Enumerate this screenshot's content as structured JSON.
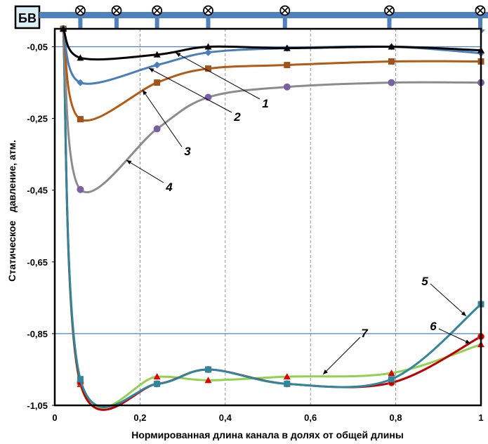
{
  "header": {
    "source_label": "БВ",
    "pipe_color": "#4f81bd",
    "valve_icon": "circle-x-valve-icon",
    "valve_positions_x": [
      0.06,
      0.145,
      0.24,
      0.36,
      0.54,
      0.785,
      1.0
    ]
  },
  "chart_data": {
    "type": "line",
    "title": "",
    "xlabel": "Нормированная длина канала в  долях от общей длины",
    "ylabel": "Статическое   давление, атм.",
    "xlim": [
      0,
      1
    ],
    "ylim": [
      -1.05,
      0.0
    ],
    "xticks": [
      0,
      0.2,
      0.4,
      0.6,
      0.8,
      1
    ],
    "xtick_labels": [
      "0",
      "0,2",
      "0,4",
      "0,6",
      "0,8",
      "1"
    ],
    "yticks": [
      -0.05,
      -0.25,
      -0.45,
      -0.65,
      -0.85,
      -1.05
    ],
    "ytick_labels": [
      "-0,05",
      "-0,25",
      "-0,45",
      "-0,65",
      "-0,85",
      "-1,05"
    ],
    "grid": "vertical dashed",
    "reference_lines_y": [
      -0.05,
      -0.85
    ],
    "x": [
      0.02,
      0.06,
      0.24,
      0.36,
      0.545,
      0.79,
      1.0
    ],
    "series": [
      {
        "name": "1",
        "color": "#000000",
        "marker": "triangle",
        "marker_color": "#000000",
        "values": [
          0.0,
          -0.081,
          -0.072,
          -0.05,
          -0.054,
          -0.05,
          -0.06
        ]
      },
      {
        "name": "2",
        "color": "#4a7ebb",
        "marker": "diamond",
        "marker_color": "#4a7ebb",
        "values": [
          0.0,
          -0.15,
          -0.101,
          -0.066,
          -0.054,
          -0.05,
          -0.068
        ]
      },
      {
        "name": "3",
        "color": "#b35a14",
        "marker": "square",
        "marker_color": "#a0521a",
        "values": [
          0.0,
          -0.252,
          -0.15,
          -0.111,
          -0.101,
          -0.091,
          -0.091
        ]
      },
      {
        "name": "4",
        "color": "#8c8c8c",
        "marker": "circle",
        "marker_color": "#7a60a0",
        "values": [
          0.0,
          -0.448,
          -0.279,
          -0.191,
          -0.162,
          -0.15,
          -0.15
        ]
      },
      {
        "name": "5",
        "color": "#31859c",
        "marker": "square",
        "marker_color": "#31859c",
        "values": [
          0.0,
          -0.977,
          -0.99,
          -0.95,
          -0.99,
          -0.977,
          -0.768
        ]
      },
      {
        "name": "6",
        "color": "#c00000",
        "marker": "circle",
        "marker_color": "#c00000",
        "values": [
          0.0,
          -0.987,
          -0.99,
          -0.95,
          -0.99,
          -0.987,
          -0.858
        ]
      },
      {
        "name": "7",
        "color": "#92d050",
        "marker": "triangle",
        "marker_color": "#e00000",
        "values": [
          0.0,
          -0.991,
          -0.97,
          -0.98,
          -0.97,
          -0.96,
          -0.88
        ]
      }
    ],
    "annotations": [
      "1",
      "2",
      "3",
      "4",
      "5",
      "6",
      "7"
    ]
  }
}
